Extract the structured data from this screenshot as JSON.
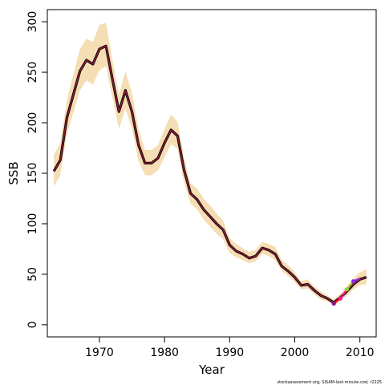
{
  "chart_data": {
    "type": "line",
    "title": "",
    "xlabel": "Year",
    "ylabel": "SSB",
    "xlim": [
      1962,
      2012.5
    ],
    "ylim": [
      -12,
      312
    ],
    "x_ticks": [
      1970,
      1980,
      1990,
      2000,
      2010
    ],
    "y_ticks": [
      0,
      50,
      100,
      150,
      200,
      250,
      300
    ],
    "grid": false,
    "legend": "none",
    "footnote": "stockassessment.org, SISAM-last-minute-cod, r2225",
    "colors": {
      "band": "#f5deb3",
      "main_line": "#000000",
      "main_overlay": "#8b1a3a",
      "retro": [
        "#ff0000",
        "#ff1493",
        "#9acd32",
        "#8a2be2"
      ]
    },
    "series": [
      {
        "x": [
          1963,
          1964,
          1965,
          1966,
          1967,
          1968,
          1969,
          1970,
          1971,
          1972,
          1973,
          1974,
          1975,
          1976,
          1977,
          1978,
          1979,
          1980,
          1981,
          1982,
          1983,
          1984,
          1985,
          1986,
          1987,
          1988,
          1989,
          1990,
          1991,
          1992,
          1993,
          1994,
          1995,
          1996,
          1997,
          1998,
          1999,
          2000,
          2001,
          2002,
          2003,
          2004,
          2005,
          2006,
          2007,
          2008,
          2009,
          2010,
          2011
        ],
        "values": [
          152,
          163,
          205,
          228,
          251,
          262,
          258,
          273,
          276,
          243,
          211,
          232,
          211,
          178,
          160,
          160,
          165,
          180,
          193,
          187,
          153,
          130,
          124,
          114,
          107,
          100,
          94,
          79,
          73,
          70,
          66,
          68,
          76,
          74,
          70,
          58,
          53,
          47,
          39,
          40,
          34,
          29,
          26,
          22,
          27,
          33,
          40,
          45,
          47
        ],
        "upper": [
          168,
          180,
          222,
          248,
          273,
          283,
          280,
          297,
          299,
          262,
          228,
          251,
          230,
          194,
          173,
          173,
          178,
          194,
          208,
          201,
          165,
          140,
          135,
          125,
          118,
          110,
          103,
          86,
          80,
          76,
          72,
          74,
          82,
          80,
          77,
          64,
          59,
          52,
          43,
          45,
          38,
          33,
          29,
          25,
          31,
          38,
          46,
          52,
          55
        ],
        "lower": [
          137,
          148,
          189,
          210,
          232,
          242,
          238,
          252,
          256,
          225,
          194,
          214,
          194,
          162,
          148,
          148,
          153,
          166,
          179,
          174,
          141,
          120,
          114,
          104,
          97,
          90,
          85,
          71,
          67,
          64,
          61,
          63,
          70,
          68,
          64,
          53,
          48,
          42,
          35,
          36,
          30,
          25,
          23,
          19,
          24,
          29,
          35,
          39,
          40
        ]
      },
      {
        "x": [
          2006,
          2007
        ],
        "values": [
          21,
          26
        ],
        "color": "#ff0000"
      },
      {
        "x": [
          2007,
          2008
        ],
        "values": [
          26,
          35
        ],
        "color": "#ff1493"
      },
      {
        "x": [
          2008,
          2009
        ],
        "values": [
          35,
          43
        ],
        "color": "#9acd32"
      },
      {
        "x": [
          2009,
          2010
        ],
        "values": [
          43,
          46
        ],
        "color": "#8a2be2"
      }
    ]
  }
}
